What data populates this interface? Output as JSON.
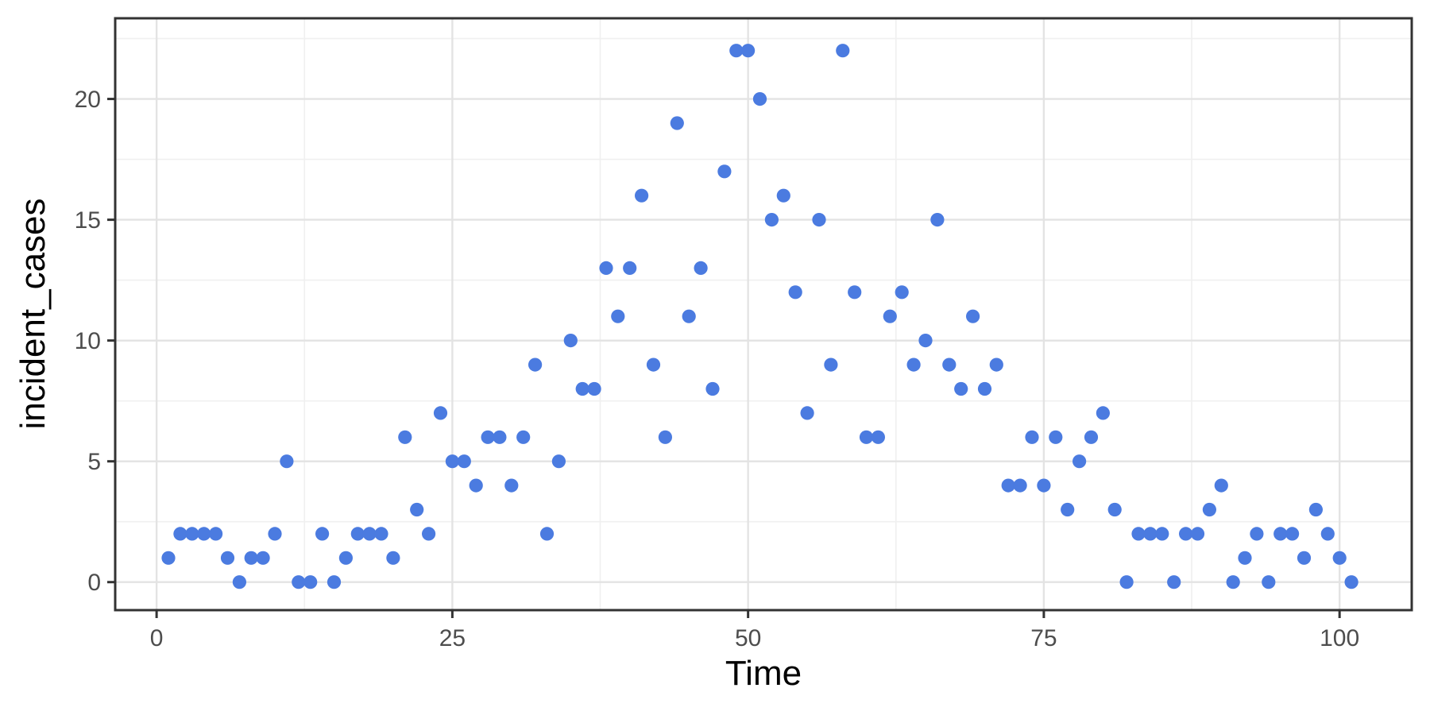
{
  "figure": {
    "background": "#ffffff",
    "x_axis_title": "Time",
    "y_axis_title": "incident_cases"
  },
  "colors": {
    "point": "#4B7BE0",
    "grid_major": "#E3E3E3",
    "grid_minor": "#F0F0F0",
    "panel_border": "#333333",
    "tick_mark": "#333333",
    "tick_label": "#4D4D4D",
    "axis_title": "#000000"
  },
  "chart_data": {
    "type": "scatter",
    "title": "",
    "xlabel": "Time",
    "ylabel": "incident_cases",
    "legend": "none",
    "grid": "major+minor",
    "xlim": [
      -3.5,
      106.1
    ],
    "ylim": [
      -1.16,
      23.34
    ],
    "x_ticks": [
      0,
      25,
      50,
      75,
      100
    ],
    "x_tick_labels": [
      "0",
      "25",
      "50",
      "75",
      "100"
    ],
    "y_ticks": [
      0,
      5,
      10,
      15,
      20
    ],
    "y_tick_labels": [
      "0",
      "5",
      "10",
      "15",
      "20"
    ],
    "x_minor_ticks": [
      12.5,
      37.5,
      62.5,
      87.5
    ],
    "y_minor_ticks": [
      2.5,
      7.5,
      12.5,
      17.5,
      22.5
    ],
    "point_radius_px": 8.6,
    "x": [
      1,
      2,
      3,
      4,
      5,
      6,
      7,
      8,
      9,
      10,
      11,
      12,
      13,
      14,
      15,
      16,
      17,
      18,
      19,
      20,
      21,
      22,
      23,
      24,
      25,
      26,
      27,
      28,
      29,
      30,
      31,
      32,
      33,
      34,
      35,
      36,
      37,
      38,
      39,
      40,
      41,
      42,
      43,
      44,
      45,
      46,
      47,
      48,
      49,
      50,
      51,
      52,
      53,
      54,
      55,
      56,
      57,
      58,
      59,
      60,
      61,
      62,
      63,
      64,
      65,
      66,
      67,
      68,
      69,
      70,
      71,
      72,
      73,
      74,
      75,
      76,
      77,
      78,
      79,
      80,
      81,
      82,
      83,
      84,
      85,
      86,
      87,
      88,
      89,
      90,
      91,
      92,
      93,
      94,
      95,
      96,
      97,
      98,
      99,
      100,
      101
    ],
    "y": [
      1,
      2,
      2,
      2,
      2,
      1,
      0,
      1,
      1,
      2,
      5,
      0,
      0,
      2,
      0,
      1,
      2,
      2,
      2,
      1,
      6,
      3,
      2,
      7,
      5,
      5,
      4,
      6,
      6,
      4,
      6,
      9,
      2,
      5,
      10,
      8,
      8,
      13,
      11,
      13,
      16,
      9,
      6,
      19,
      11,
      13,
      8,
      17,
      22,
      22,
      20,
      15,
      16,
      12,
      7,
      15,
      9,
      22,
      12,
      6,
      6,
      11,
      12,
      9,
      10,
      15,
      9,
      8,
      11,
      8,
      9,
      4,
      4,
      6,
      4,
      6,
      3,
      5,
      6,
      7,
      3,
      0,
      2,
      2,
      2,
      0,
      2,
      2,
      3,
      4,
      0,
      1,
      2,
      0,
      2,
      2,
      1,
      3,
      2,
      1,
      0
    ]
  }
}
